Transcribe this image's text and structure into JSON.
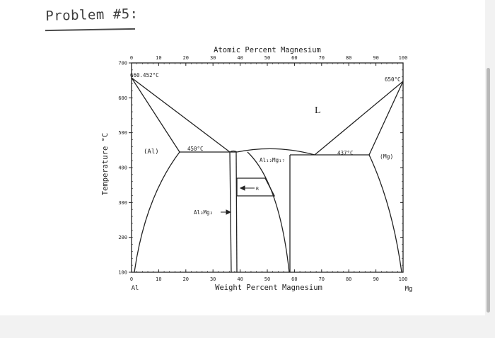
{
  "heading": "Problem #5:",
  "diagram": {
    "top_axis_title": "Atomic Percent Magnesium",
    "bottom_axis_title": "Weight Percent Magnesium",
    "y_axis_title": "Temperature °C",
    "left_element": "Al",
    "right_element": "Mg",
    "top_ticks": [
      "0",
      "10",
      "20",
      "30",
      "40",
      "50",
      "60",
      "70",
      "80",
      "90",
      "100"
    ],
    "bottom_ticks": [
      "0",
      "10",
      "20",
      "30",
      "40",
      "50",
      "60",
      "70",
      "80",
      "90",
      "100"
    ],
    "y_ticks": [
      "100",
      "200",
      "300",
      "400",
      "500",
      "600",
      "700"
    ],
    "labels": {
      "al_melting": "660.452°C",
      "mg_melting": "650°C",
      "liquid": "L",
      "al_phase": "(Al)",
      "mg_phase": "(Mg)",
      "eutectic_left": "450°C",
      "eutectic_right": "437°C",
      "phase_middle": "Al₁₂Mg₁₇",
      "phase_r": "R",
      "phase_beta": "Al₃Mg₂"
    }
  }
}
